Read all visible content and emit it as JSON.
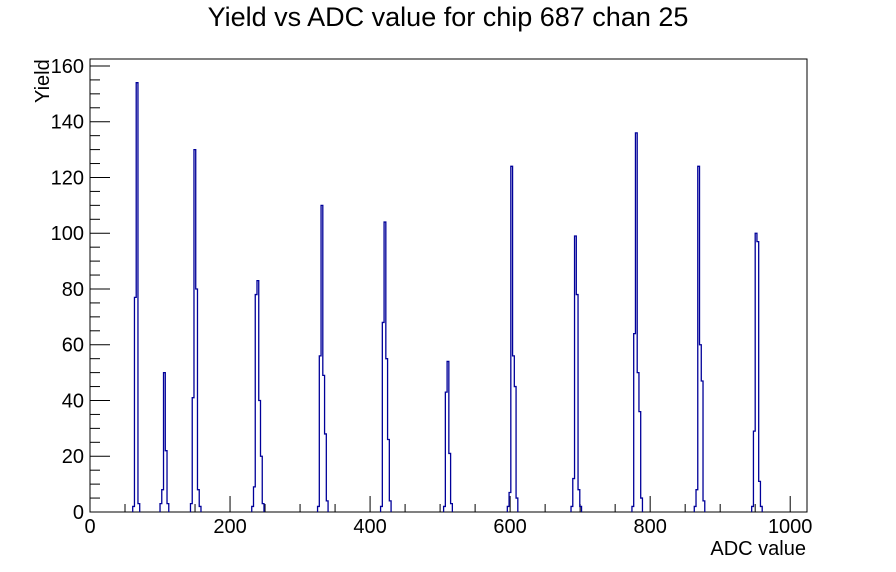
{
  "chart_data": {
    "type": "bar",
    "subtype": "histogram-outline",
    "title": "Yield vs ADC value for chip 687 chan 25",
    "xlabel": "ADC value",
    "ylabel": "Yield",
    "xlim": [
      0,
      1024
    ],
    "ylim": [
      0,
      162.5
    ],
    "grid": false,
    "legend": null,
    "x_major_ticks": [
      0,
      200,
      400,
      600,
      800,
      1000
    ],
    "x_minor_step": 50,
    "y_major_ticks": [
      0,
      20,
      40,
      60,
      80,
      100,
      120,
      140,
      160
    ],
    "y_minor_step": 5,
    "line_color": "#000099",
    "bin_width": 2.5,
    "peaks": [
      {
        "adc_start": 61,
        "bin_heights": [
          2,
          77,
          154,
          3
        ]
      },
      {
        "adc_start": 100,
        "bin_heights": [
          3,
          8,
          50,
          22,
          3
        ]
      },
      {
        "adc_start": 143.5,
        "bin_heights": [
          3,
          41,
          130,
          80,
          8,
          2
        ]
      },
      {
        "adc_start": 231,
        "bin_heights": [
          2,
          9,
          78,
          83,
          40,
          20,
          3
        ]
      },
      {
        "adc_start": 325,
        "bin_heights": [
          2,
          56,
          110,
          49,
          28,
          4
        ]
      },
      {
        "adc_start": 415,
        "bin_heights": [
          2,
          68,
          104,
          55,
          26,
          4
        ]
      },
      {
        "adc_start": 505,
        "bin_heights": [
          2,
          43,
          54,
          21,
          3
        ]
      },
      {
        "adc_start": 596,
        "bin_heights": [
          2,
          7,
          124,
          56,
          45,
          5
        ]
      },
      {
        "adc_start": 687,
        "bin_heights": [
          2,
          12,
          99,
          78,
          8,
          2
        ]
      },
      {
        "adc_start": 774,
        "bin_heights": [
          2,
          64,
          136,
          50,
          36,
          5
        ]
      },
      {
        "adc_start": 863,
        "bin_heights": [
          2,
          8,
          124,
          60,
          47,
          4
        ]
      },
      {
        "adc_start": 945,
        "bin_heights": [
          2,
          29,
          100,
          97,
          11,
          2
        ]
      }
    ],
    "peak_summary": [
      {
        "adc": 66,
        "yield": 154
      },
      {
        "adc": 106,
        "yield": 50
      },
      {
        "adc": 150,
        "yield": 130
      },
      {
        "adc": 240,
        "yield": 83
      },
      {
        "adc": 331,
        "yield": 110
      },
      {
        "adc": 421,
        "yield": 104
      },
      {
        "adc": 512,
        "yield": 54
      },
      {
        "adc": 602,
        "yield": 124
      },
      {
        "adc": 693,
        "yield": 99
      },
      {
        "adc": 780,
        "yield": 136
      },
      {
        "adc": 869,
        "yield": 124
      },
      {
        "adc": 951,
        "yield": 100
      }
    ]
  }
}
